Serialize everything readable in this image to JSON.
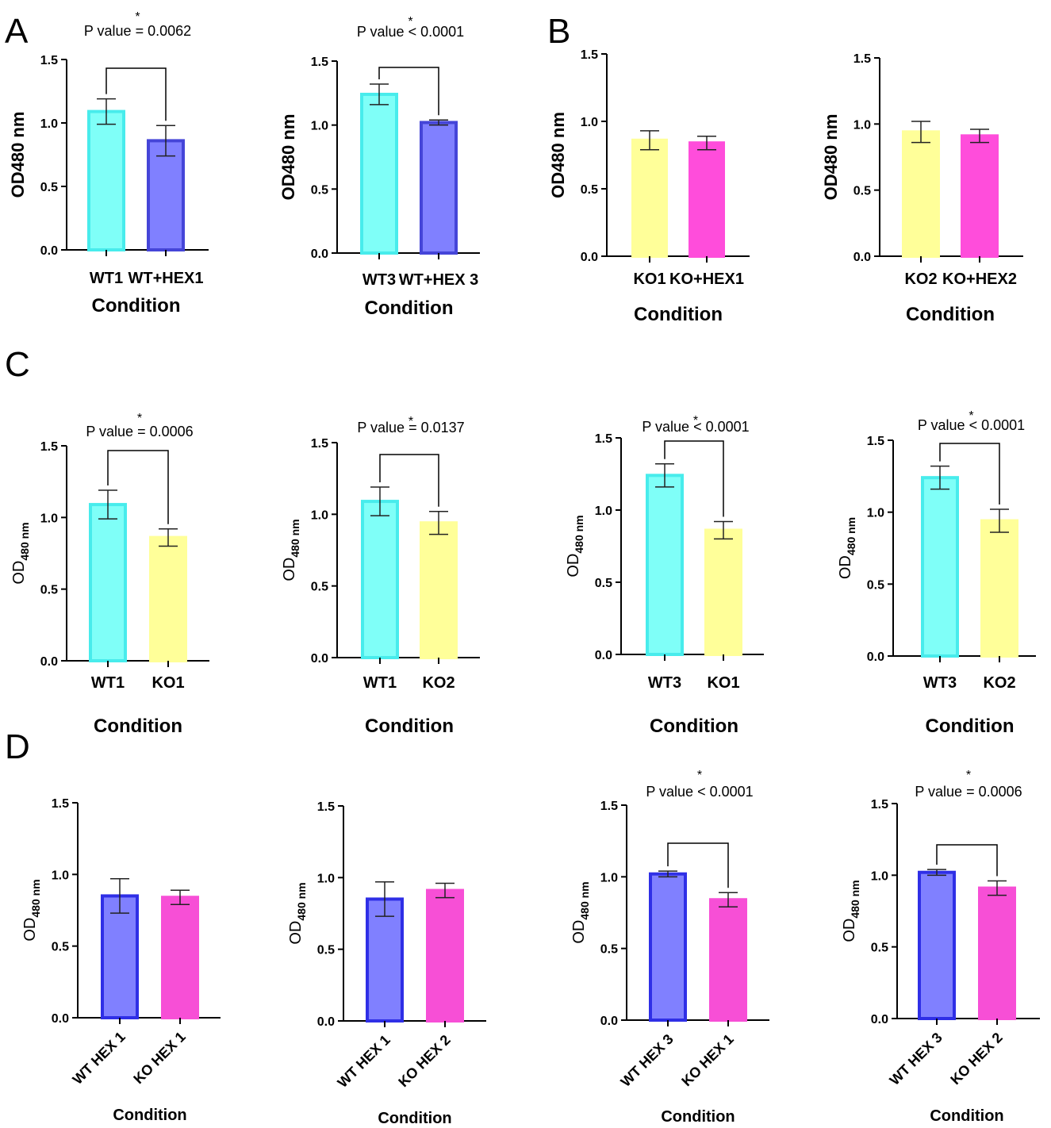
{
  "figure_labels": {
    "A": "A",
    "B": "B",
    "C": "C",
    "D": "D"
  },
  "chart_data": [
    {
      "type": "bar",
      "panel": "A",
      "title": "",
      "xlabel": "Condition",
      "ylabel": "OD480 nm",
      "ylim": [
        0,
        1.5
      ],
      "yticks": [
        "0.0",
        "0.5",
        "1.0",
        "1.5"
      ],
      "categories": [
        "WT1",
        "WT+HEX1"
      ],
      "values": [
        1.09,
        0.86
      ],
      "errors": [
        0.1,
        0.12
      ],
      "colors": [
        "#7ffff8",
        "#8080ff"
      ],
      "edge_colors": [
        "#48ecec",
        "#4545d8"
      ],
      "significance": {
        "star": "*",
        "text": "P value = 0.0062"
      }
    },
    {
      "type": "bar",
      "panel": "A",
      "title": "",
      "xlabel": "Condition",
      "ylabel": "OD480 nm",
      "ylim": [
        0,
        1.5
      ],
      "yticks": [
        "0.0",
        "0.5",
        "1.0",
        "1.5"
      ],
      "categories": [
        "WT3",
        "WT+HEX 3"
      ],
      "values": [
        1.24,
        1.02
      ],
      "errors": [
        0.08,
        0.02
      ],
      "colors": [
        "#7ffff8",
        "#8080ff"
      ],
      "edge_colors": [
        "#48ecec",
        "#4545d8"
      ],
      "significance": {
        "star": "*",
        "text": "P value < 0.0001"
      }
    },
    {
      "type": "bar",
      "panel": "B",
      "title": "",
      "xlabel": "Condition",
      "ylabel": "OD480 nm",
      "ylim": [
        0,
        1.5
      ],
      "yticks": [
        "0.0",
        "0.5",
        "1.0",
        "1.5"
      ],
      "categories": [
        "KO1",
        "KO+HEX1"
      ],
      "values": [
        0.86,
        0.84
      ],
      "errors": [
        0.07,
        0.05
      ],
      "colors": [
        "#ffff99",
        "#ff4ddb"
      ],
      "edge_colors": [
        "#ffff99",
        "#ff4ddb"
      ],
      "significance": null
    },
    {
      "type": "bar",
      "panel": "B",
      "title": "",
      "xlabel": "Condition",
      "ylabel": "OD480 nm",
      "ylim": [
        0,
        1.5
      ],
      "yticks": [
        "0.0",
        "0.5",
        "1.0",
        "1.5"
      ],
      "categories": [
        "KO2",
        "KO+HEX2"
      ],
      "values": [
        0.94,
        0.91
      ],
      "errors": [
        0.08,
        0.05
      ],
      "colors": [
        "#ffff99",
        "#ff4ddb"
      ],
      "edge_colors": [
        "#ffff99",
        "#ff4ddb"
      ],
      "significance": null
    },
    {
      "type": "bar",
      "panel": "C",
      "title": "",
      "xlabel": "Condition",
      "ylabel": "OD",
      "ylabel_sub": "480 nm",
      "ylim": [
        0,
        1.5
      ],
      "yticks": [
        "0.0",
        "0.5",
        "1.0",
        "1.5"
      ],
      "categories": [
        "WT1",
        "KO1"
      ],
      "values": [
        1.09,
        0.86
      ],
      "errors": [
        0.1,
        0.06
      ],
      "colors": [
        "#7ffff8",
        "#ffff99"
      ],
      "edge_colors": [
        "#48ecec",
        "#ffff99"
      ],
      "significance": {
        "star": "*",
        "text": "P value = 0.0006"
      }
    },
    {
      "type": "bar",
      "panel": "C",
      "title": "",
      "xlabel": "Condition",
      "ylabel": "OD",
      "ylabel_sub": "480 nm",
      "ylim": [
        0,
        1.5
      ],
      "yticks": [
        "0.0",
        "0.5",
        "1.0",
        "1.5"
      ],
      "categories": [
        "WT1",
        "KO2"
      ],
      "values": [
        1.09,
        0.94
      ],
      "errors": [
        0.1,
        0.08
      ],
      "colors": [
        "#7ffff8",
        "#ffff99"
      ],
      "edge_colors": [
        "#48ecec",
        "#ffff99"
      ],
      "significance": {
        "star": "*",
        "text": "P value = 0.0137"
      }
    },
    {
      "type": "bar",
      "panel": "C",
      "title": "",
      "xlabel": "Condition",
      "ylabel": "OD",
      "ylabel_sub": "480 nm",
      "ylim": [
        0,
        1.5
      ],
      "yticks": [
        "0.0",
        "0.5",
        "1.0",
        "1.5"
      ],
      "categories": [
        "WT3",
        "KO1"
      ],
      "values": [
        1.24,
        0.86
      ],
      "errors": [
        0.08,
        0.06
      ],
      "colors": [
        "#7ffff8",
        "#ffff99"
      ],
      "edge_colors": [
        "#48ecec",
        "#ffff99"
      ],
      "significance": {
        "star": "*",
        "text": "P value < 0.0001"
      }
    },
    {
      "type": "bar",
      "panel": "C",
      "title": "",
      "xlabel": "Condition",
      "ylabel": "OD",
      "ylabel_sub": "480 nm",
      "ylim": [
        0,
        1.5
      ],
      "yticks": [
        "0.0",
        "0.5",
        "1.0",
        "1.5"
      ],
      "categories": [
        "WT3",
        "KO2"
      ],
      "values": [
        1.24,
        0.94
      ],
      "errors": [
        0.08,
        0.08
      ],
      "colors": [
        "#7ffff8",
        "#ffff99"
      ],
      "edge_colors": [
        "#48ecec",
        "#ffff99"
      ],
      "significance": {
        "star": "*",
        "text": "P value < 0.0001"
      }
    },
    {
      "type": "bar",
      "panel": "D",
      "title": "",
      "xlabel": "Condition",
      "ylabel": "OD",
      "ylabel_sub": "480 nm",
      "ylim": [
        0,
        1.5
      ],
      "yticks": [
        "0.0",
        "0.5",
        "1.0",
        "1.5"
      ],
      "categories": [
        "WT HEX 1",
        "KO HEX 1"
      ],
      "values": [
        0.85,
        0.84
      ],
      "errors": [
        0.12,
        0.05
      ],
      "colors": [
        "#8080ff",
        "#f74fd6"
      ],
      "edge_colors": [
        "#2f2fe6",
        "#f74fd6"
      ],
      "significance": null
    },
    {
      "type": "bar",
      "panel": "D",
      "title": "",
      "xlabel": "Condition",
      "ylabel": "OD",
      "ylabel_sub": "480 nm",
      "ylim": [
        0,
        1.5
      ],
      "yticks": [
        "0.0",
        "0.5",
        "1.0",
        "1.5"
      ],
      "categories": [
        "WT HEX 1",
        "KO HEX 2"
      ],
      "values": [
        0.85,
        0.91
      ],
      "errors": [
        0.12,
        0.05
      ],
      "colors": [
        "#8080ff",
        "#f74fd6"
      ],
      "edge_colors": [
        "#2f2fe6",
        "#f74fd6"
      ],
      "significance": null
    },
    {
      "type": "bar",
      "panel": "D",
      "title": "",
      "xlabel": "Condition",
      "ylabel": "OD",
      "ylabel_sub": "480 nm",
      "ylim": [
        0,
        1.5
      ],
      "yticks": [
        "0.0",
        "0.5",
        "1.0",
        "1.5"
      ],
      "categories": [
        "WT HEX 3",
        "KO HEX 1"
      ],
      "values": [
        1.02,
        0.84
      ],
      "errors": [
        0.02,
        0.05
      ],
      "colors": [
        "#8080ff",
        "#f74fd6"
      ],
      "edge_colors": [
        "#2f2fe6",
        "#f74fd6"
      ],
      "significance": {
        "star": "*",
        "text": "P value < 0.0001"
      }
    },
    {
      "type": "bar",
      "panel": "D",
      "title": "",
      "xlabel": "Condition",
      "ylabel": "OD",
      "ylabel_sub": "480 nm",
      "ylim": [
        0,
        1.5
      ],
      "yticks": [
        "0.0",
        "0.5",
        "1.0",
        "1.5"
      ],
      "categories": [
        "WT HEX 3",
        "KO HEX 2"
      ],
      "values": [
        1.02,
        0.91
      ],
      "errors": [
        0.02,
        0.05
      ],
      "colors": [
        "#8080ff",
        "#f74fd6"
      ],
      "edge_colors": [
        "#2f2fe6",
        "#f74fd6"
      ],
      "significance": {
        "star": "*",
        "text": "P value = 0.0006"
      }
    }
  ]
}
